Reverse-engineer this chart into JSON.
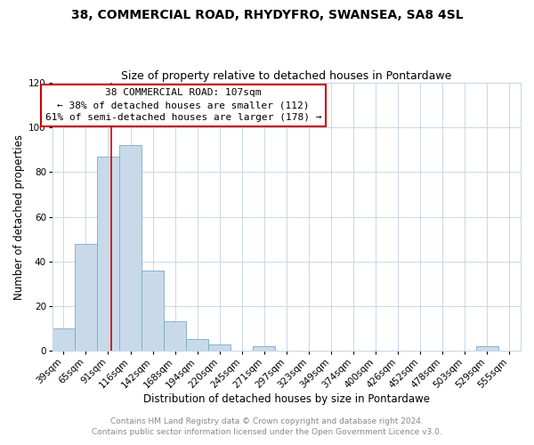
{
  "title": "38, COMMERCIAL ROAD, RHYDYFRO, SWANSEA, SA8 4SL",
  "subtitle": "Size of property relative to detached houses in Pontardawe",
  "xlabel": "Distribution of detached houses by size in Pontardawe",
  "ylabel": "Number of detached properties",
  "bar_color": "#c8daea",
  "bar_edge_color": "#7aaac8",
  "bin_labels": [
    "39sqm",
    "65sqm",
    "91sqm",
    "116sqm",
    "142sqm",
    "168sqm",
    "194sqm",
    "220sqm",
    "245sqm",
    "271sqm",
    "297sqm",
    "323sqm",
    "349sqm",
    "374sqm",
    "400sqm",
    "426sqm",
    "452sqm",
    "478sqm",
    "503sqm",
    "529sqm",
    "555sqm"
  ],
  "bar_heights": [
    10,
    48,
    87,
    92,
    36,
    13,
    5,
    3,
    0,
    2,
    0,
    0,
    0,
    0,
    0,
    0,
    0,
    0,
    0,
    2,
    0
  ],
  "vline_x": 107,
  "bin_edges_values": [
    39,
    65,
    91,
    116,
    142,
    168,
    194,
    220,
    245,
    271,
    297,
    323,
    349,
    374,
    400,
    426,
    452,
    478,
    503,
    529,
    555
  ],
  "annotation_title": "38 COMMERCIAL ROAD: 107sqm",
  "annotation_line1": "← 38% of detached houses are smaller (112)",
  "annotation_line2": "61% of semi-detached houses are larger (178) →",
  "annotation_box_color": "#ffffff",
  "annotation_box_edge_color": "#cc0000",
  "vline_color": "#cc0000",
  "ylim": [
    0,
    120
  ],
  "yticks": [
    0,
    20,
    40,
    60,
    80,
    100,
    120
  ],
  "footer1": "Contains HM Land Registry data © Crown copyright and database right 2024.",
  "footer2": "Contains public sector information licensed under the Open Government Licence v3.0.",
  "bg_color": "#ffffff",
  "plot_bg_color": "#ffffff",
  "grid_color": "#c8d8e8",
  "title_fontsize": 10,
  "subtitle_fontsize": 9,
  "axis_label_fontsize": 8.5,
  "tick_fontsize": 7.5,
  "footer_fontsize": 6.5,
  "annotation_fontsize": 8
}
